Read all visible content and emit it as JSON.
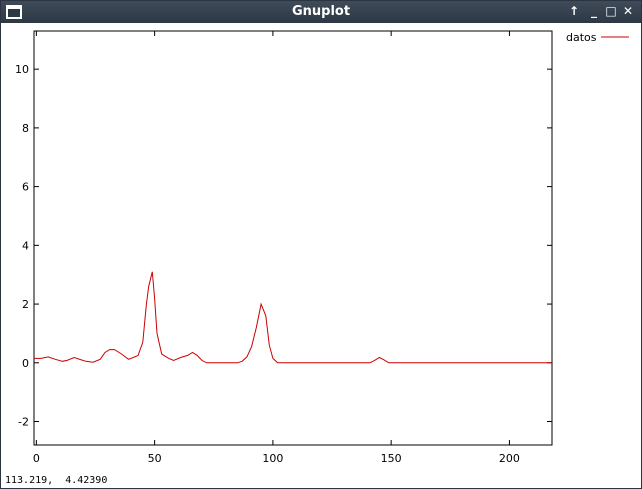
{
  "window": {
    "title": "Gnuplot",
    "controls": {
      "raise_icon": "↑",
      "minimize_icon": "_",
      "maximize_icon": "□",
      "close_icon": "✕"
    }
  },
  "status": {
    "coordinates": "113.219,  4.42390"
  },
  "colors": {
    "titlebar": "#2d3845",
    "series": "#cc0000"
  },
  "chart_data": {
    "type": "line",
    "title": "",
    "xlabel": "",
    "ylabel": "",
    "xlim": [
      -1,
      218
    ],
    "ylim": [
      -2.8,
      11.3
    ],
    "xticks": [
      0,
      50,
      100,
      150,
      200
    ],
    "yticks": [
      -2,
      0,
      2,
      4,
      6,
      8,
      10
    ],
    "grid": false,
    "legend": "top-right outside plot",
    "series": [
      {
        "name": "datos",
        "color": "#cc0000",
        "points": [
          [
            -1,
            0.15
          ],
          [
            2,
            0.15
          ],
          [
            5,
            0.2
          ],
          [
            8,
            0.12
          ],
          [
            11,
            0.05
          ],
          [
            13,
            0.08
          ],
          [
            16,
            0.18
          ],
          [
            19,
            0.1
          ],
          [
            21,
            0.05
          ],
          [
            24,
            0.02
          ],
          [
            27,
            0.12
          ],
          [
            29,
            0.35
          ],
          [
            31,
            0.45
          ],
          [
            33,
            0.45
          ],
          [
            36,
            0.3
          ],
          [
            39,
            0.12
          ],
          [
            41,
            0.18
          ],
          [
            43,
            0.25
          ],
          [
            45,
            0.7
          ],
          [
            46.5,
            2.0
          ],
          [
            47.5,
            2.6
          ],
          [
            49,
            3.1
          ],
          [
            50,
            2.2
          ],
          [
            51,
            1.0
          ],
          [
            53,
            0.3
          ],
          [
            56,
            0.15
          ],
          [
            58,
            0.08
          ],
          [
            61,
            0.18
          ],
          [
            64,
            0.25
          ],
          [
            66,
            0.35
          ],
          [
            68,
            0.25
          ],
          [
            70,
            0.08
          ],
          [
            72,
            0.0
          ],
          [
            75,
            0.0
          ],
          [
            85,
            0.0
          ],
          [
            87,
            0.05
          ],
          [
            89,
            0.2
          ],
          [
            91,
            0.55
          ],
          [
            93,
            1.2
          ],
          [
            95,
            2.0
          ],
          [
            97,
            1.6
          ],
          [
            98.5,
            0.6
          ],
          [
            100,
            0.15
          ],
          [
            102,
            0.0
          ],
          [
            110,
            0.0
          ],
          [
            130,
            0.0
          ],
          [
            141,
            0.0
          ],
          [
            143,
            0.08
          ],
          [
            145,
            0.18
          ],
          [
            147,
            0.1
          ],
          [
            149,
            0.0
          ],
          [
            160,
            0.0
          ],
          [
            190,
            0.0
          ],
          [
            218,
            0.0
          ]
        ]
      }
    ]
  }
}
